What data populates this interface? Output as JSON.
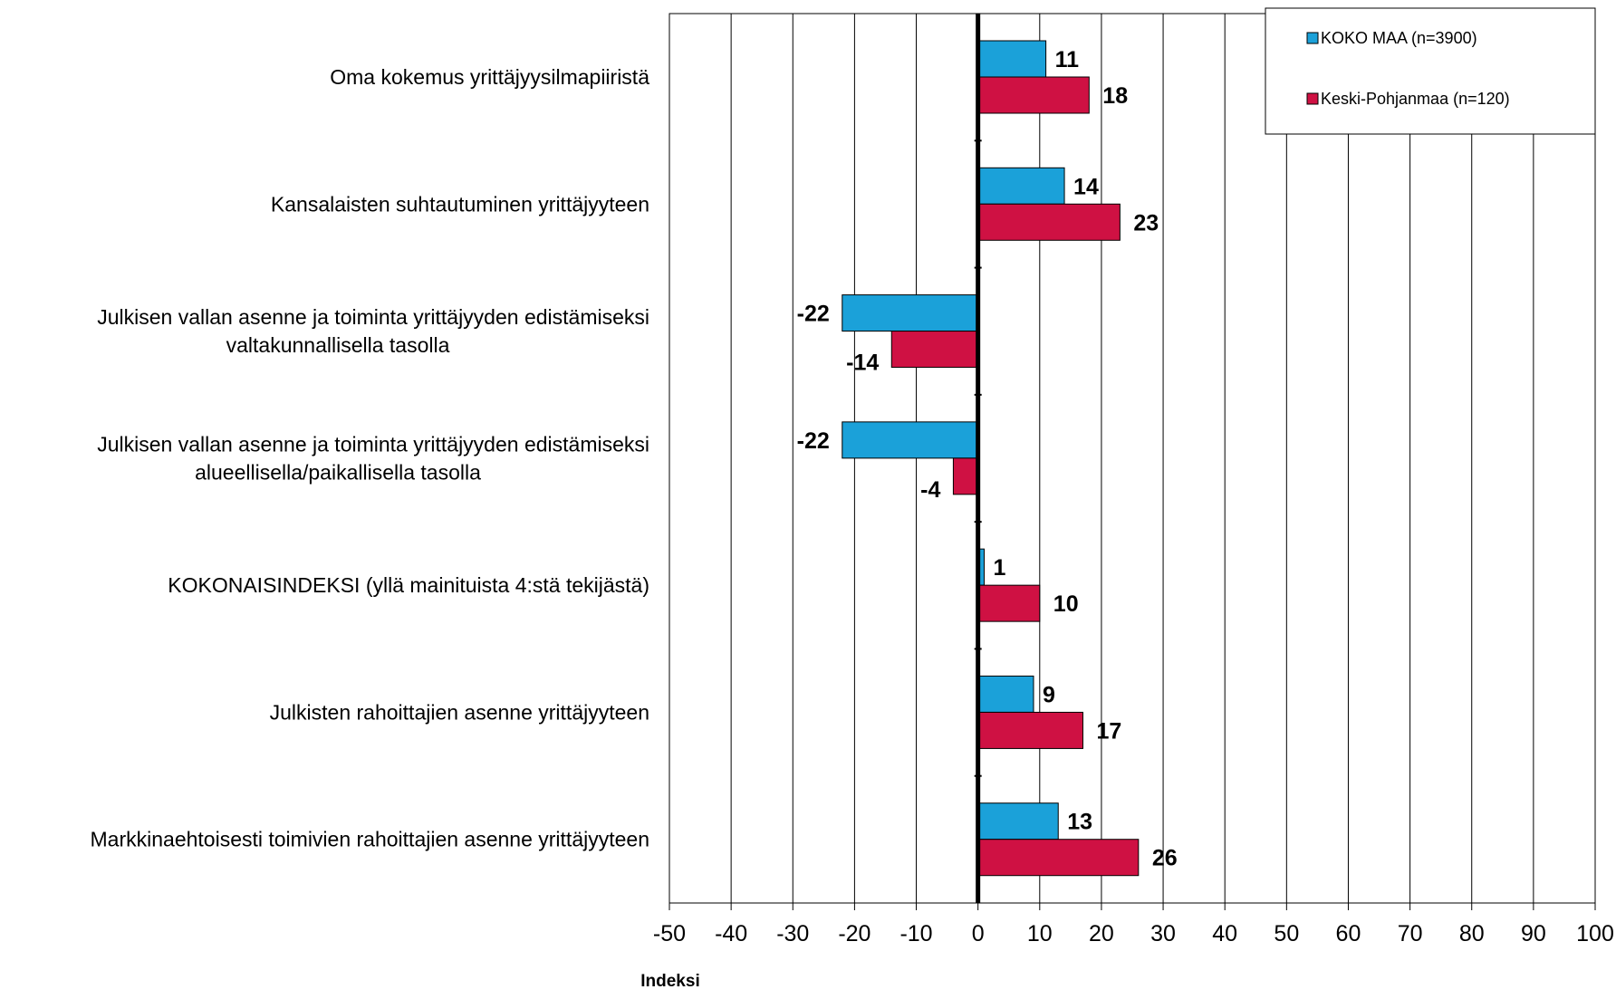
{
  "chart_data": {
    "type": "bar",
    "orientation": "horizontal",
    "categories": [
      [
        "Oma kokemus yrittäjyysilmapiiristä"
      ],
      [
        "Kansalaisten suhtautuminen yrittäjyyteen"
      ],
      [
        "Julkisen vallan asenne ja toiminta yrittäjyyden edistämiseksi",
        "valtakunnallisella tasolla"
      ],
      [
        "Julkisen vallan asenne ja toiminta yrittäjyyden edistämiseksi",
        "alueellisella/paikallisella  tasolla"
      ],
      [
        "KOKONAISINDEKSI (yllä mainituista 4:stä tekijästä)"
      ],
      [
        "Julkisten rahoittajien asenne yrittäjyyteen"
      ],
      [
        "Markkinaehtoisesti toimivien rahoittajien asenne yrittäjyyteen"
      ]
    ],
    "series": [
      {
        "name": "KOKO MAA (n=3900)",
        "color": "#1BA1D9",
        "values": [
          11,
          14,
          -22,
          -22,
          1,
          9,
          13
        ]
      },
      {
        "name": "Keski-Pohjanmaa (n=120)",
        "color": "#CF1143",
        "values": [
          18,
          23,
          -14,
          -4,
          10,
          17,
          26
        ]
      }
    ],
    "xlabel": "Indeksi",
    "xlim": [
      -50,
      100
    ],
    "xticks": [
      -50,
      -40,
      -30,
      -20,
      -10,
      0,
      10,
      20,
      30,
      40,
      50,
      60,
      70,
      80,
      90,
      100
    ],
    "grid": "vertical",
    "legend_position": "top-right"
  }
}
